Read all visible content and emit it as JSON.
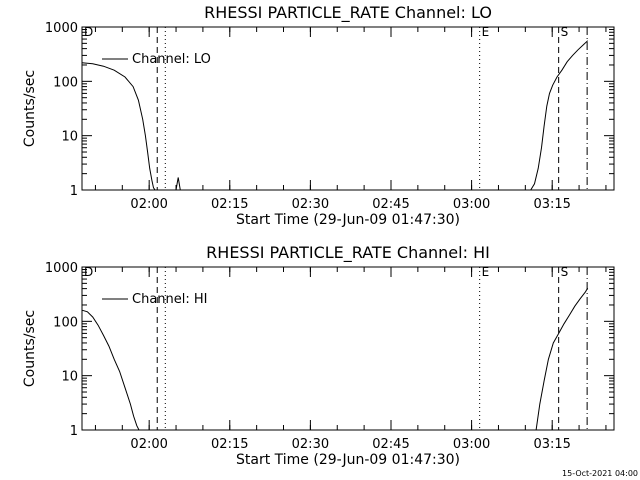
{
  "footer_timestamp": "15-Oct-2021 04:00",
  "chart_data": [
    {
      "type": "line",
      "title": "RHESSI PARTICLE_RATE Channel: LO",
      "xlabel": "Start Time (29-Jun-09 01:47:30)",
      "ylabel": "Counts/sec",
      "yscale": "log",
      "ylim": [
        1,
        1000
      ],
      "xlim_minutes": [
        0,
        99
      ],
      "x_ticks": [
        {
          "t": 12.5,
          "label": "02:00"
        },
        {
          "t": 27.5,
          "label": "02:15"
        },
        {
          "t": 42.5,
          "label": "02:30"
        },
        {
          "t": 57.5,
          "label": "02:45"
        },
        {
          "t": 72.5,
          "label": "03:00"
        },
        {
          "t": 87.5,
          "label": "03:15"
        }
      ],
      "y_ticks": [
        {
          "v": 1,
          "label": "1"
        },
        {
          "v": 10,
          "label": "10"
        },
        {
          "v": 100,
          "label": "100"
        },
        {
          "v": 1000,
          "label": "1000"
        }
      ],
      "legend": {
        "label": "Channel: LO",
        "position": "top-left"
      },
      "grid": false,
      "series": [
        {
          "name": "Channel: LO",
          "x": [
            0,
            2,
            4,
            6,
            8,
            9.5,
            10.5,
            11.3,
            11.8,
            12.2,
            12.6,
            13.0,
            13.3,
            13.6
          ],
          "values": [
            220,
            210,
            190,
            160,
            120,
            80,
            45,
            20,
            10,
            5,
            2.5,
            1.5,
            1.1,
            1.0
          ]
        },
        {
          "name": "",
          "x": [
            17.5,
            17.9,
            18.3
          ],
          "values": [
            1,
            1.7,
            1
          ]
        },
        {
          "name": "",
          "x": [
            83.5,
            84.2,
            84.9,
            85.5,
            86.0,
            86.5,
            87.0,
            87.6,
            88.4,
            89.3,
            90.3,
            91.3,
            92.3,
            93.3,
            94.1
          ],
          "values": [
            1,
            1.3,
            2.5,
            6,
            15,
            35,
            60,
            85,
            120,
            160,
            230,
            300,
            380,
            470,
            560
          ]
        }
      ],
      "markers": [
        {
          "t": 0,
          "label": "D",
          "style": "dashed"
        },
        {
          "t": 14,
          "label": "",
          "style": "dashed"
        },
        {
          "t": 15.5,
          "label": "",
          "style": "dotted"
        },
        {
          "t": 74,
          "label": "E",
          "style": "dotted"
        },
        {
          "t": 88.7,
          "label": "S",
          "style": "dashed"
        },
        {
          "t": 94,
          "label": "",
          "style": "dashdot"
        }
      ]
    },
    {
      "type": "line",
      "title": "RHESSI PARTICLE_RATE Channel: HI",
      "xlabel": "Start Time (29-Jun-09 01:47:30)",
      "ylabel": "Counts/sec",
      "yscale": "log",
      "ylim": [
        1,
        1000
      ],
      "xlim_minutes": [
        0,
        99
      ],
      "x_ticks": [
        {
          "t": 12.5,
          "label": "02:00"
        },
        {
          "t": 27.5,
          "label": "02:15"
        },
        {
          "t": 42.5,
          "label": "02:30"
        },
        {
          "t": 57.5,
          "label": "02:45"
        },
        {
          "t": 72.5,
          "label": "03:00"
        },
        {
          "t": 87.5,
          "label": "03:15"
        }
      ],
      "y_ticks": [
        {
          "v": 1,
          "label": "1"
        },
        {
          "v": 10,
          "label": "10"
        },
        {
          "v": 100,
          "label": "100"
        },
        {
          "v": 1000,
          "label": "1000"
        }
      ],
      "legend": {
        "label": "Channel: HI",
        "position": "top-left"
      },
      "grid": false,
      "series": [
        {
          "name": "Channel: HI",
          "x": [
            0,
            1,
            2,
            3,
            4,
            5,
            6,
            7,
            8,
            9,
            9.6,
            10.2,
            10.6
          ],
          "values": [
            160,
            150,
            120,
            85,
            55,
            35,
            20,
            12,
            6,
            3,
            1.8,
            1.2,
            1.0
          ]
        },
        {
          "name": "",
          "x": [
            84.5,
            85.2,
            86.0,
            86.8,
            87.7,
            88.7,
            89.7,
            90.7,
            91.7,
            92.7,
            93.7,
            94.1
          ],
          "values": [
            1,
            3,
            8,
            20,
            40,
            60,
            90,
            130,
            190,
            260,
            350,
            410
          ]
        }
      ],
      "markers": [
        {
          "t": 0,
          "label": "D",
          "style": "dashed"
        },
        {
          "t": 14,
          "label": "",
          "style": "dashed"
        },
        {
          "t": 15.5,
          "label": "",
          "style": "dotted"
        },
        {
          "t": 74,
          "label": "E",
          "style": "dotted"
        },
        {
          "t": 88.7,
          "label": "S",
          "style": "dashed"
        },
        {
          "t": 94,
          "label": "",
          "style": "dashdot"
        }
      ]
    }
  ]
}
